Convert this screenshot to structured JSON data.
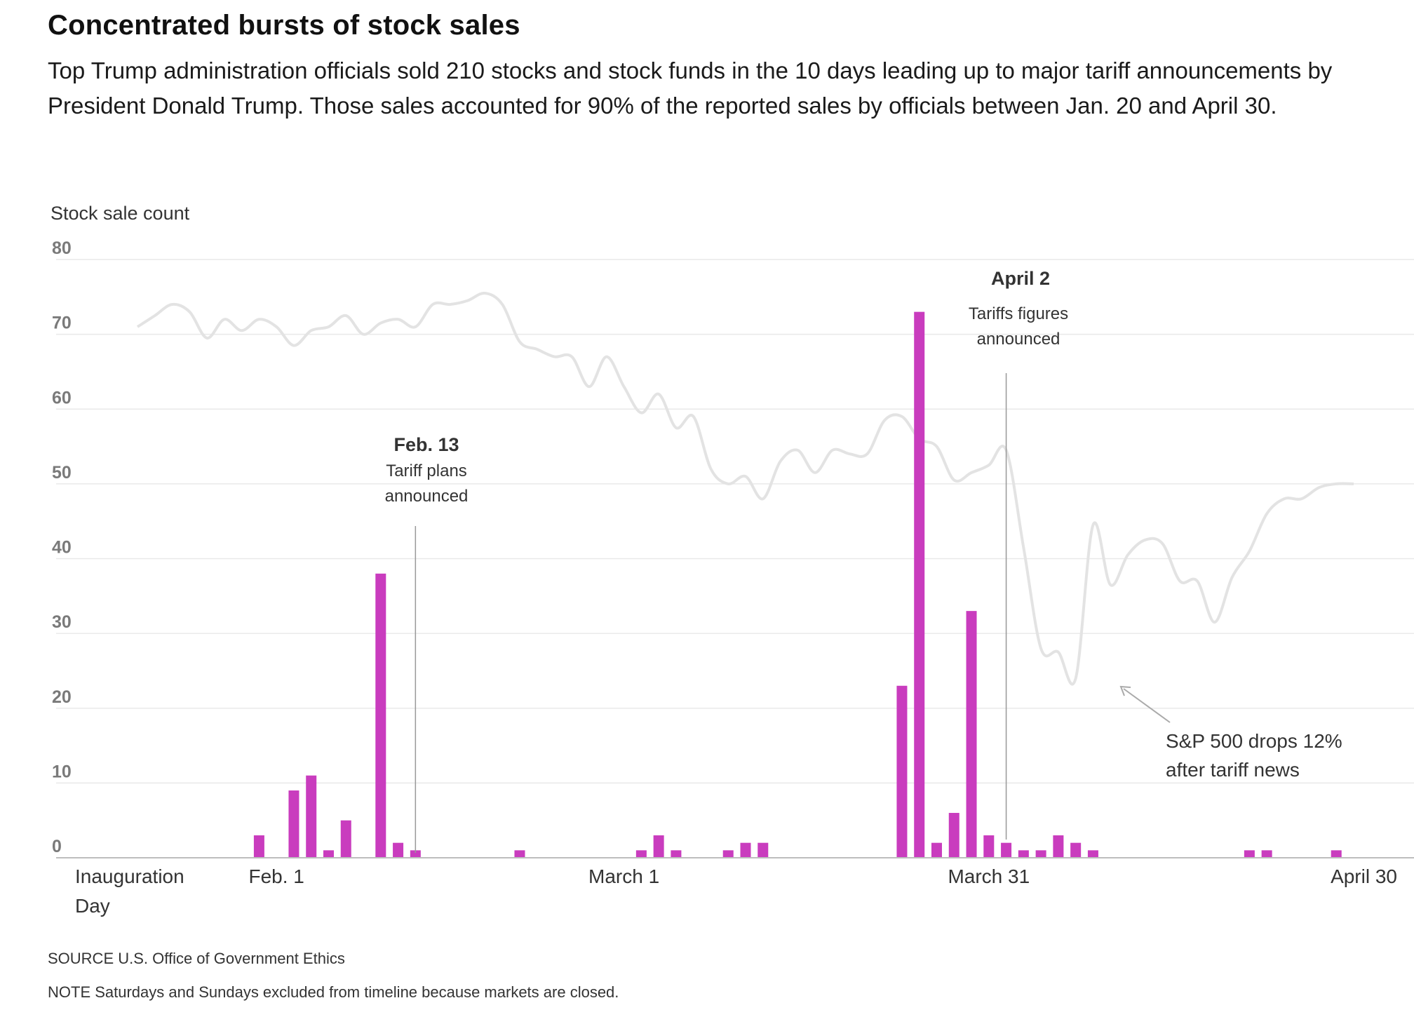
{
  "title": "Concentrated bursts of stock sales",
  "subtitle": "Top Trump administration officials sold 210 stocks and stock funds in the 10 days leading up to major tariff announcements by President Donald Trump. Those sales accounted for 90% of the reported sales by officials between Jan. 20 and April 30.",
  "source": "SOURCE U.S. Office of Government Ethics",
  "note": "NOTE Saturdays and Sundays excluded from timeline because markets are closed.",
  "colors": {
    "bar": "#c93cbe",
    "sp500_line": "#e3e3e3",
    "grid": "#e9e9e9",
    "annotation": "#999999",
    "tick": "#7a7a7a"
  },
  "chart_data": {
    "type": "bar",
    "title": "",
    "ylabel": "Stock sale count",
    "xlabel": "",
    "ylim": [
      0,
      80
    ],
    "yticks": [
      0,
      10,
      20,
      30,
      40,
      50,
      60,
      70,
      80
    ],
    "grid": true,
    "x_range_trading_day_index": [
      0,
      70
    ],
    "x_tick_labels": [
      {
        "day_index": 0,
        "lines": [
          "Inauguration",
          "Day"
        ]
      },
      {
        "day_index": 8,
        "lines": [
          "Feb. 1"
        ]
      },
      {
        "day_index": 28,
        "lines": [
          "March 1"
        ]
      },
      {
        "day_index": 49,
        "lines": [
          "March 31"
        ]
      },
      {
        "day_index": 70,
        "lines": [
          "April 30"
        ]
      }
    ],
    "series": [
      {
        "name": "Stock sale count",
        "points": [
          {
            "day_index": 7,
            "value": 3
          },
          {
            "day_index": 9,
            "value": 9
          },
          {
            "day_index": 10,
            "value": 11
          },
          {
            "day_index": 11,
            "value": 1
          },
          {
            "day_index": 12,
            "value": 5
          },
          {
            "day_index": 14,
            "value": 38
          },
          {
            "day_index": 15,
            "value": 2
          },
          {
            "day_index": 16,
            "value": 1
          },
          {
            "day_index": 22,
            "value": 1
          },
          {
            "day_index": 29,
            "value": 1
          },
          {
            "day_index": 30,
            "value": 3
          },
          {
            "day_index": 31,
            "value": 1
          },
          {
            "day_index": 34,
            "value": 1
          },
          {
            "day_index": 35,
            "value": 2
          },
          {
            "day_index": 36,
            "value": 2
          },
          {
            "day_index": 44,
            "value": 23
          },
          {
            "day_index": 45,
            "value": 73
          },
          {
            "day_index": 46,
            "value": 2
          },
          {
            "day_index": 47,
            "value": 6
          },
          {
            "day_index": 48,
            "value": 33
          },
          {
            "day_index": 49,
            "value": 3
          },
          {
            "day_index": 50,
            "value": 2
          },
          {
            "day_index": 51,
            "value": 1
          },
          {
            "day_index": 52,
            "value": 1
          },
          {
            "day_index": 53,
            "value": 3
          },
          {
            "day_index": 54,
            "value": 2
          },
          {
            "day_index": 55,
            "value": 1
          },
          {
            "day_index": 64,
            "value": 1
          },
          {
            "day_index": 65,
            "value": 1
          },
          {
            "day_index": 69,
            "value": 1
          }
        ]
      },
      {
        "name": "S&P 500 (unlabeled relative level)",
        "type": "line",
        "x_range_trading_day_index": [
          0,
          70
        ],
        "points": [
          [
            0,
            71
          ],
          [
            1,
            72.5
          ],
          [
            2,
            74
          ],
          [
            3,
            73
          ],
          [
            4,
            69.5
          ],
          [
            5,
            72
          ],
          [
            6,
            70.5
          ],
          [
            7,
            72
          ],
          [
            8,
            71
          ],
          [
            9,
            68.5
          ],
          [
            10,
            70.5
          ],
          [
            11,
            71
          ],
          [
            12,
            72.5
          ],
          [
            13,
            70
          ],
          [
            14,
            71.5
          ],
          [
            15,
            72
          ],
          [
            16,
            71
          ],
          [
            17,
            74
          ],
          [
            18,
            74
          ],
          [
            19,
            74.5
          ],
          [
            20,
            75.5
          ],
          [
            21,
            74
          ],
          [
            22,
            69
          ],
          [
            23,
            68
          ],
          [
            24,
            67
          ],
          [
            25,
            67
          ],
          [
            26,
            63
          ],
          [
            27,
            67
          ],
          [
            28,
            63
          ],
          [
            29,
            59.5
          ],
          [
            30,
            62
          ],
          [
            31,
            57.5
          ],
          [
            32,
            59
          ],
          [
            33,
            52
          ],
          [
            34,
            50
          ],
          [
            35,
            51
          ],
          [
            36,
            48
          ],
          [
            37,
            53
          ],
          [
            38,
            54.5
          ],
          [
            39,
            51.5
          ],
          [
            40,
            54.5
          ],
          [
            41,
            54
          ],
          [
            42,
            54
          ],
          [
            43,
            58.5
          ],
          [
            44,
            59
          ],
          [
            45,
            56
          ],
          [
            46,
            55
          ],
          [
            47,
            50.5
          ],
          [
            48,
            51.5
          ],
          [
            49,
            52.5
          ],
          [
            50,
            54.5
          ],
          [
            51,
            41.5
          ],
          [
            52,
            28
          ],
          [
            53,
            27.5
          ],
          [
            54,
            24
          ],
          [
            55,
            44.5
          ],
          [
            56,
            36.5
          ],
          [
            57,
            40.5
          ],
          [
            58,
            42.5
          ],
          [
            59,
            42
          ],
          [
            60,
            37
          ],
          [
            61,
            37
          ],
          [
            62,
            31.5
          ],
          [
            63,
            37.5
          ],
          [
            64,
            41
          ],
          [
            65,
            46
          ],
          [
            66,
            48
          ],
          [
            67,
            48
          ],
          [
            68,
            49.5
          ],
          [
            69,
            50
          ],
          [
            70,
            50
          ]
        ]
      }
    ],
    "annotations": [
      {
        "day_index": 16,
        "date": "Feb. 13",
        "text_lines": [
          "Tariff plans",
          "announced"
        ]
      },
      {
        "day_index": 50,
        "date": "April 2",
        "text_lines": [
          "Tariffs figures",
          "announced"
        ]
      },
      {
        "text_lines": [
          "S&P 500 drops 12%",
          "after tariff news"
        ],
        "points_to_day_index": 56
      }
    ]
  }
}
